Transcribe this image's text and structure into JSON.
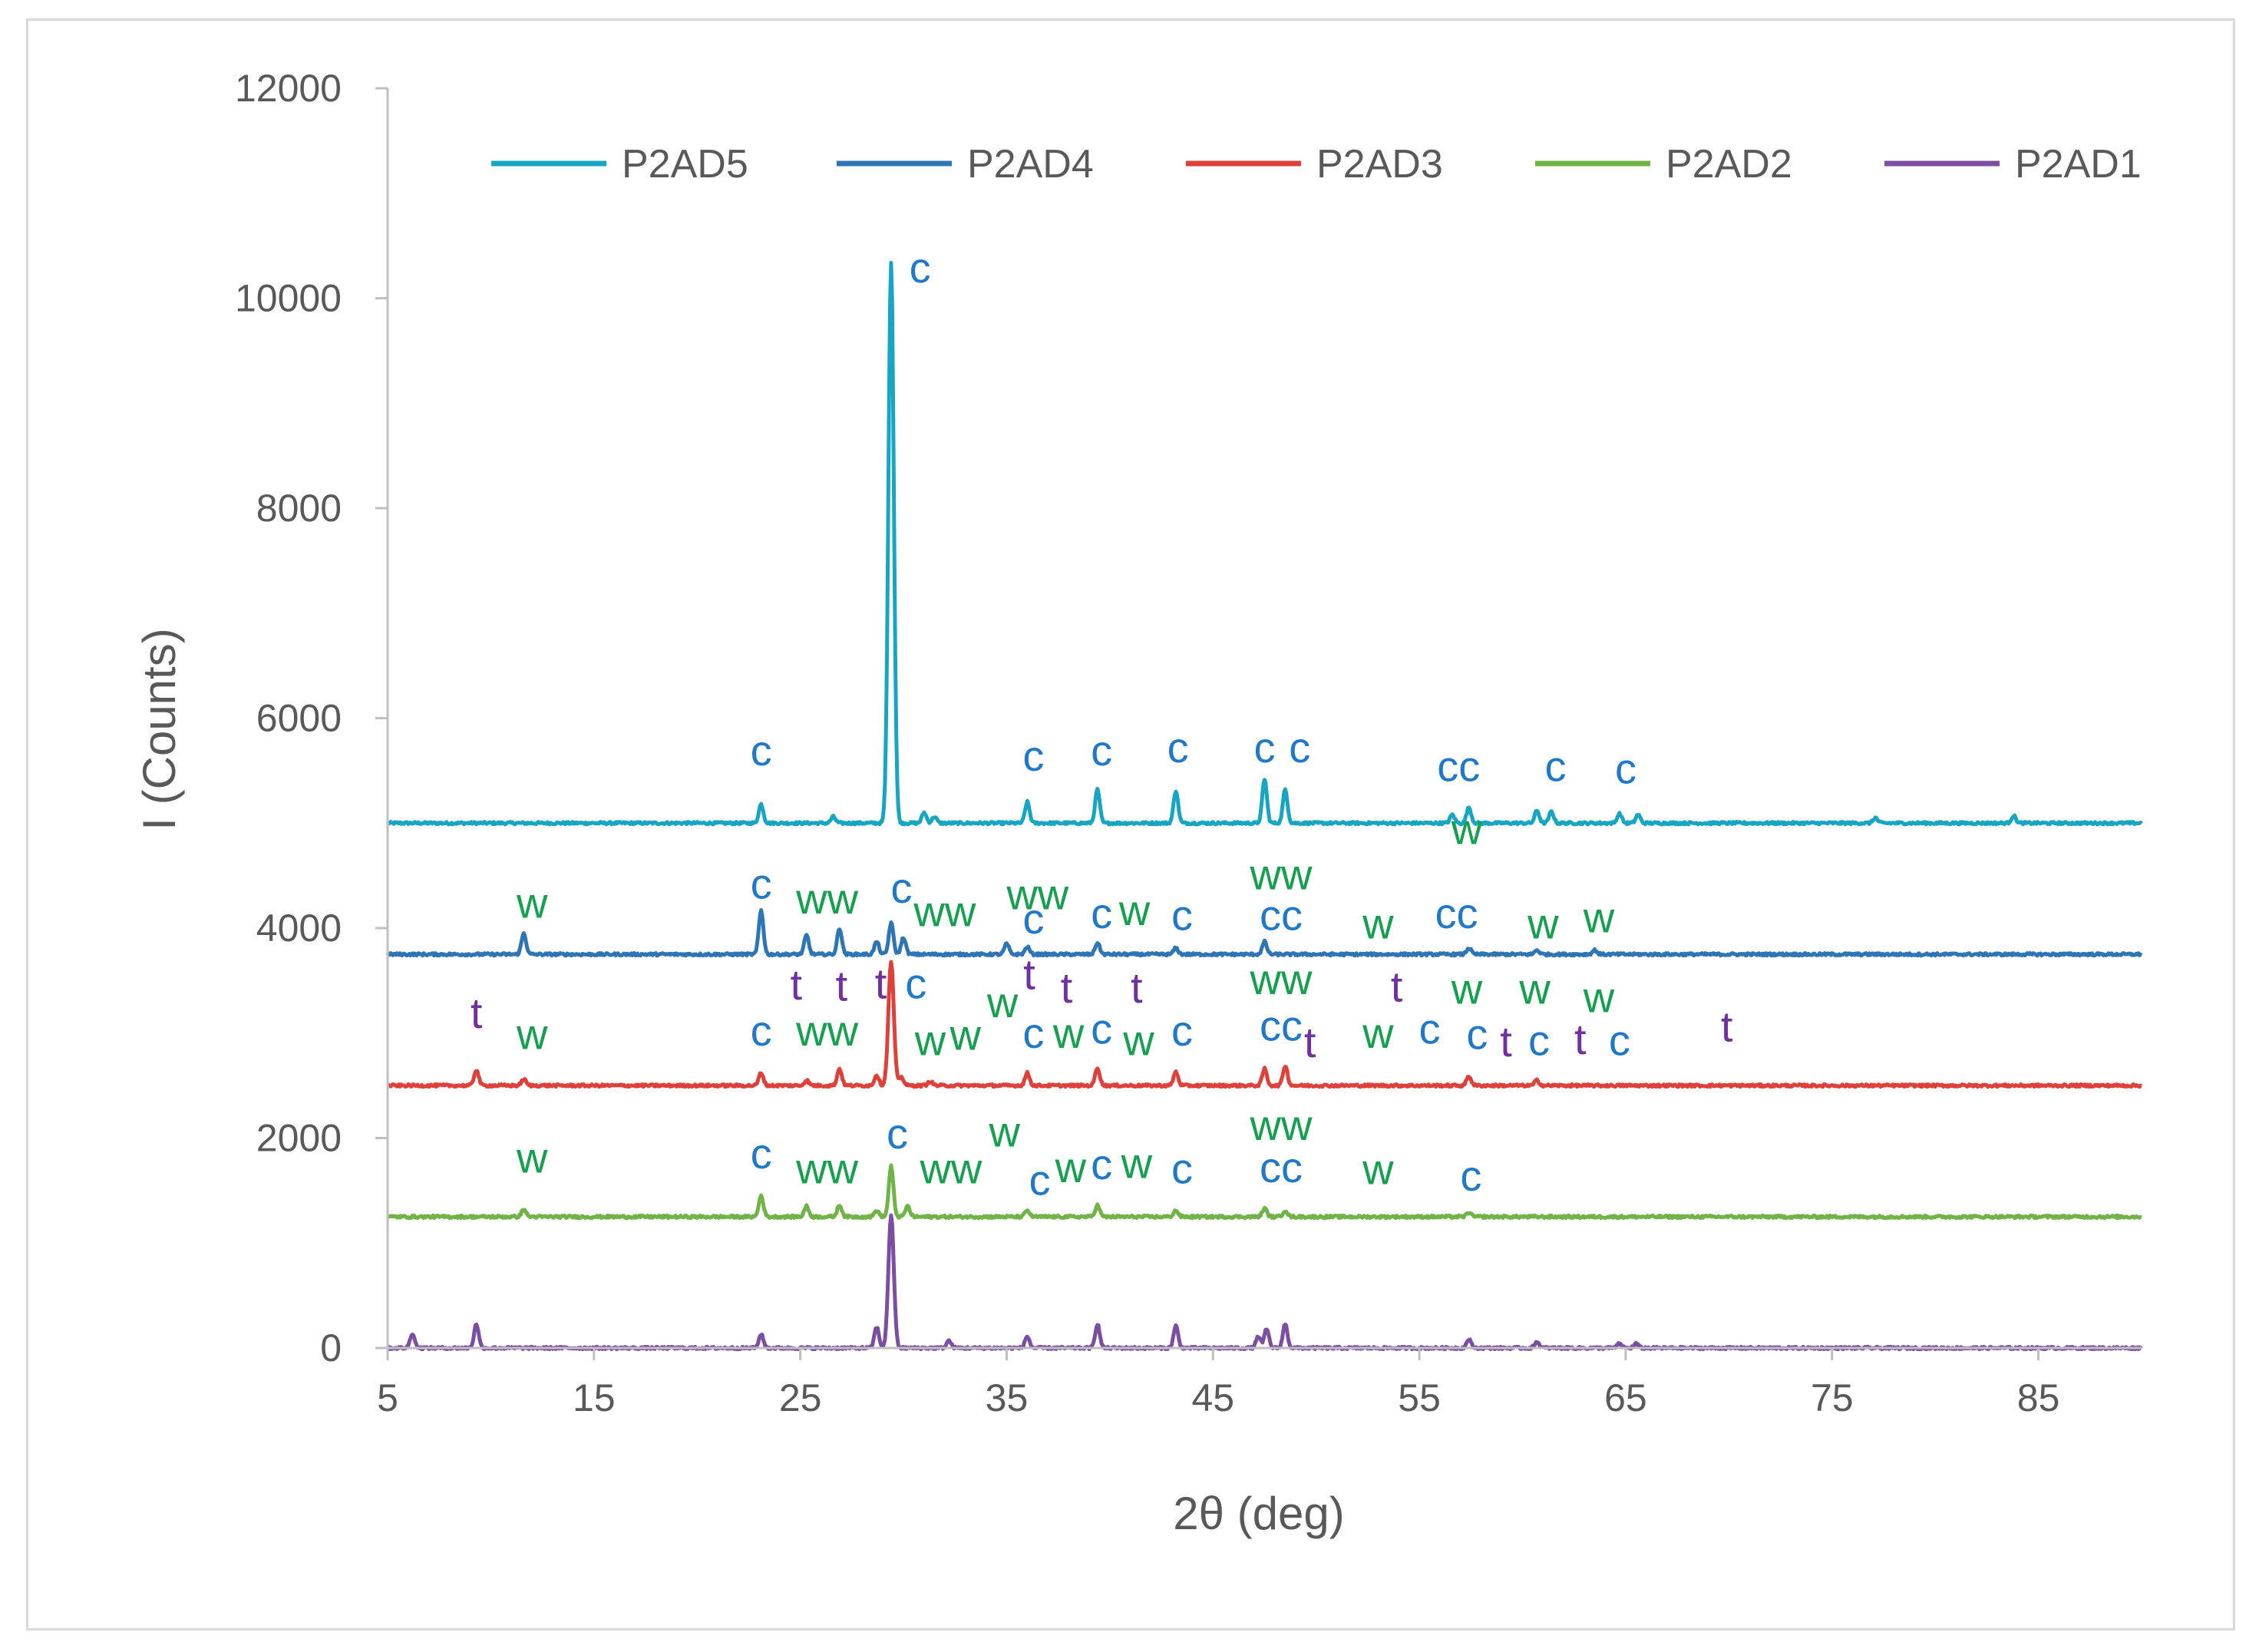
{
  "chart_data": {
    "type": "line",
    "title": "",
    "xlabel": "2θ (deg)",
    "ylabel": "I (Counts)",
    "xlim": [
      5,
      90
    ],
    "ylim": [
      0,
      12000
    ],
    "xticks": [
      5,
      15,
      25,
      35,
      45,
      55,
      65,
      75,
      85
    ],
    "yticks": [
      0,
      2000,
      4000,
      6000,
      8000,
      10000,
      12000
    ],
    "legend_position": "top",
    "series": [
      {
        "name": "P2AD5",
        "color": "#17a5c4",
        "baseline": 5000,
        "peaks": [
          [
            23.1,
            180
          ],
          [
            26.6,
            60
          ],
          [
            29.4,
            5350
          ],
          [
            31.0,
            100
          ],
          [
            31.5,
            60
          ],
          [
            36.0,
            200
          ],
          [
            39.4,
            320
          ],
          [
            43.2,
            310
          ],
          [
            47.5,
            420
          ],
          [
            48.5,
            320
          ],
          [
            56.6,
            80
          ],
          [
            57.4,
            150
          ],
          [
            60.7,
            120
          ],
          [
            61.4,
            110
          ],
          [
            64.7,
            90
          ],
          [
            65.6,
            80
          ],
          [
            77.1,
            50
          ],
          [
            83.8,
            70
          ]
        ]
      },
      {
        "name": "P2AD4",
        "color": "#2e75b6",
        "baseline": 3750,
        "peaks": [
          [
            11.6,
            200
          ],
          [
            23.1,
            420
          ],
          [
            25.3,
            180
          ],
          [
            26.9,
            250
          ],
          [
            28.7,
            120
          ],
          [
            29.4,
            300
          ],
          [
            30.0,
            160
          ],
          [
            35.0,
            100
          ],
          [
            36.0,
            70
          ],
          [
            39.4,
            110
          ],
          [
            43.2,
            60
          ],
          [
            47.5,
            120
          ],
          [
            57.4,
            60
          ],
          [
            60.7,
            40
          ],
          [
            63.5,
            40
          ]
        ]
      },
      {
        "name": "P2AD3",
        "color": "#e0403a",
        "baseline": 2500,
        "peaks": [
          [
            9.3,
            150
          ],
          [
            11.6,
            60
          ],
          [
            23.1,
            120
          ],
          [
            25.3,
            50
          ],
          [
            26.9,
            160
          ],
          [
            28.7,
            100
          ],
          [
            29.4,
            1180
          ],
          [
            29.9,
            80
          ],
          [
            31.3,
            40
          ],
          [
            36.0,
            120
          ],
          [
            39.4,
            170
          ],
          [
            43.2,
            130
          ],
          [
            47.5,
            160
          ],
          [
            48.5,
            190
          ],
          [
            57.4,
            90
          ],
          [
            60.7,
            50
          ]
        ]
      },
      {
        "name": "P2AD2",
        "color": "#70b346",
        "baseline": 1250,
        "peaks": [
          [
            11.6,
            70
          ],
          [
            23.1,
            200
          ],
          [
            25.3,
            100
          ],
          [
            26.9,
            110
          ],
          [
            28.7,
            60
          ],
          [
            29.4,
            480
          ],
          [
            30.2,
            100
          ],
          [
            36.0,
            60
          ],
          [
            39.4,
            110
          ],
          [
            43.2,
            60
          ],
          [
            47.5,
            80
          ],
          [
            48.5,
            60
          ],
          [
            57.4,
            40
          ]
        ]
      },
      {
        "name": "P2AD1",
        "color": "#7b4ea3",
        "baseline": 0,
        "peaks": [
          [
            6.2,
            140
          ],
          [
            9.3,
            230
          ],
          [
            23.1,
            130
          ],
          [
            28.7,
            200
          ],
          [
            29.4,
            1270
          ],
          [
            32.2,
            70
          ],
          [
            36.0,
            110
          ],
          [
            39.4,
            230
          ],
          [
            43.2,
            210
          ],
          [
            47.2,
            110
          ],
          [
            47.6,
            180
          ],
          [
            48.5,
            230
          ],
          [
            57.4,
            80
          ],
          [
            60.7,
            60
          ],
          [
            64.7,
            40
          ],
          [
            65.5,
            40
          ]
        ]
      }
    ],
    "annotations": [
      {
        "text": "c",
        "x": 30.8,
        "y": 10150,
        "color": "#1f78c8"
      },
      {
        "text": "c",
        "x": 23.1,
        "y": 5550,
        "color": "#1f78c8"
      },
      {
        "text": "c",
        "x": 36.3,
        "y": 5500,
        "color": "#1f78c8"
      },
      {
        "text": "c",
        "x": 39.6,
        "y": 5550,
        "color": "#1f78c8"
      },
      {
        "text": "c",
        "x": 43.3,
        "y": 5580,
        "color": "#1f78c8"
      },
      {
        "text": "c",
        "x": 47.5,
        "y": 5580,
        "color": "#1f78c8"
      },
      {
        "text": "c",
        "x": 49.2,
        "y": 5580,
        "color": "#1f78c8"
      },
      {
        "text": "cc",
        "x": 56.9,
        "y": 5400,
        "color": "#1f78c8"
      },
      {
        "text": "c",
        "x": 61.6,
        "y": 5400,
        "color": "#1f78c8"
      },
      {
        "text": "c",
        "x": 65.0,
        "y": 5380,
        "color": "#1f78c8"
      },
      {
        "text": "w",
        "x": 57.3,
        "y": 4800,
        "color": "#14a04e"
      },
      {
        "text": "w",
        "x": 12.0,
        "y": 4100,
        "color": "#14a04e"
      },
      {
        "text": "c",
        "x": 23.1,
        "y": 4280,
        "color": "#1f78c8"
      },
      {
        "text": "ww",
        "x": 26.3,
        "y": 4140,
        "color": "#14a04e"
      },
      {
        "text": "c",
        "x": 29.9,
        "y": 4240,
        "color": "#1f78c8"
      },
      {
        "text": "ww",
        "x": 32.0,
        "y": 4020,
        "color": "#14a04e"
      },
      {
        "text": "ww",
        "x": 36.5,
        "y": 4180,
        "color": "#14a04e"
      },
      {
        "text": "c",
        "x": 36.3,
        "y": 3950,
        "color": "#1f78c8"
      },
      {
        "text": "c",
        "x": 39.6,
        "y": 4000,
        "color": "#1f78c8"
      },
      {
        "text": "w",
        "x": 41.2,
        "y": 4030,
        "color": "#14a04e"
      },
      {
        "text": "c",
        "x": 43.5,
        "y": 3980,
        "color": "#1f78c8"
      },
      {
        "text": "ww",
        "x": 48.3,
        "y": 4370,
        "color": "#14a04e"
      },
      {
        "text": "cc",
        "x": 48.3,
        "y": 3980,
        "color": "#1f78c8"
      },
      {
        "text": "w",
        "x": 53.0,
        "y": 3900,
        "color": "#14a04e"
      },
      {
        "text": "cc",
        "x": 56.8,
        "y": 4000,
        "color": "#1f78c8"
      },
      {
        "text": "w",
        "x": 61.0,
        "y": 3900,
        "color": "#14a04e"
      },
      {
        "text": "w",
        "x": 63.7,
        "y": 3960,
        "color": "#14a04e"
      },
      {
        "text": "t",
        "x": 9.3,
        "y": 3050,
        "color": "#7030a0"
      },
      {
        "text": "w",
        "x": 12.0,
        "y": 2850,
        "color": "#14a04e"
      },
      {
        "text": "t",
        "x": 24.8,
        "y": 3320,
        "color": "#7030a0"
      },
      {
        "text": "t",
        "x": 27.0,
        "y": 3310,
        "color": "#7030a0"
      },
      {
        "text": "t",
        "x": 28.9,
        "y": 3330,
        "color": "#7030a0"
      },
      {
        "text": "c",
        "x": 30.6,
        "y": 3330,
        "color": "#1f78c8"
      },
      {
        "text": "c",
        "x": 23.1,
        "y": 2880,
        "color": "#1f78c8"
      },
      {
        "text": "ww",
        "x": 26.3,
        "y": 2880,
        "color": "#14a04e"
      },
      {
        "text": "w",
        "x": 31.3,
        "y": 2790,
        "color": "#14a04e"
      },
      {
        "text": "w",
        "x": 33.0,
        "y": 2840,
        "color": "#14a04e"
      },
      {
        "text": "w",
        "x": 34.8,
        "y": 3150,
        "color": "#14a04e"
      },
      {
        "text": "t",
        "x": 36.1,
        "y": 3420,
        "color": "#7030a0"
      },
      {
        "text": "t",
        "x": 37.9,
        "y": 3290,
        "color": "#7030a0"
      },
      {
        "text": "t",
        "x": 41.3,
        "y": 3290,
        "color": "#7030a0"
      },
      {
        "text": "c",
        "x": 36.3,
        "y": 2860,
        "color": "#1f78c8"
      },
      {
        "text": "w",
        "x": 38.0,
        "y": 2860,
        "color": "#14a04e"
      },
      {
        "text": "c",
        "x": 39.6,
        "y": 2900,
        "color": "#1f78c8"
      },
      {
        "text": "w",
        "x": 41.4,
        "y": 2790,
        "color": "#14a04e"
      },
      {
        "text": "c",
        "x": 43.5,
        "y": 2880,
        "color": "#1f78c8"
      },
      {
        "text": "ww",
        "x": 48.3,
        "y": 3370,
        "color": "#14a04e"
      },
      {
        "text": "cc",
        "x": 48.3,
        "y": 2930,
        "color": "#1f78c8"
      },
      {
        "text": "t",
        "x": 49.7,
        "y": 2770,
        "color": "#7030a0"
      },
      {
        "text": "w",
        "x": 53.0,
        "y": 2860,
        "color": "#14a04e"
      },
      {
        "text": "t",
        "x": 53.9,
        "y": 3300,
        "color": "#7030a0"
      },
      {
        "text": "c",
        "x": 55.5,
        "y": 2900,
        "color": "#1f78c8"
      },
      {
        "text": "w",
        "x": 57.3,
        "y": 3280,
        "color": "#14a04e"
      },
      {
        "text": "c",
        "x": 57.8,
        "y": 2850,
        "color": "#1f78c8"
      },
      {
        "text": "t",
        "x": 59.2,
        "y": 2780,
        "color": "#7030a0"
      },
      {
        "text": "w",
        "x": 60.6,
        "y": 3280,
        "color": "#14a04e"
      },
      {
        "text": "c",
        "x": 60.8,
        "y": 2790,
        "color": "#1f78c8"
      },
      {
        "text": "t",
        "x": 62.8,
        "y": 2800,
        "color": "#7030a0"
      },
      {
        "text": "w",
        "x": 63.7,
        "y": 3200,
        "color": "#14a04e"
      },
      {
        "text": "c",
        "x": 64.7,
        "y": 2790,
        "color": "#1f78c8"
      },
      {
        "text": "t",
        "x": 69.9,
        "y": 2920,
        "color": "#7030a0"
      },
      {
        "text": "w",
        "x": 12.0,
        "y": 1670,
        "color": "#14a04e"
      },
      {
        "text": "c",
        "x": 23.1,
        "y": 1710,
        "color": "#1f78c8"
      },
      {
        "text": "ww",
        "x": 26.3,
        "y": 1570,
        "color": "#14a04e"
      },
      {
        "text": "c",
        "x": 29.7,
        "y": 1900,
        "color": "#1f78c8"
      },
      {
        "text": "ww",
        "x": 32.3,
        "y": 1570,
        "color": "#14a04e"
      },
      {
        "text": "w",
        "x": 34.9,
        "y": 1920,
        "color": "#14a04e"
      },
      {
        "text": "c",
        "x": 36.6,
        "y": 1460,
        "color": "#1f78c8"
      },
      {
        "text": "w",
        "x": 38.1,
        "y": 1580,
        "color": "#14a04e"
      },
      {
        "text": "c",
        "x": 39.6,
        "y": 1610,
        "color": "#1f78c8"
      },
      {
        "text": "w",
        "x": 41.3,
        "y": 1620,
        "color": "#14a04e"
      },
      {
        "text": "c",
        "x": 43.5,
        "y": 1570,
        "color": "#1f78c8"
      },
      {
        "text": "ww",
        "x": 48.3,
        "y": 1980,
        "color": "#14a04e"
      },
      {
        "text": "cc",
        "x": 48.3,
        "y": 1580,
        "color": "#1f78c8"
      },
      {
        "text": "w",
        "x": 53.0,
        "y": 1560,
        "color": "#14a04e"
      },
      {
        "text": "c",
        "x": 57.5,
        "y": 1500,
        "color": "#1f78c8"
      }
    ]
  }
}
